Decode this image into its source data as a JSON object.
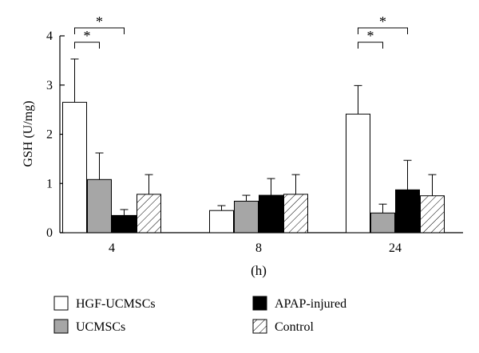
{
  "chart_data": {
    "type": "bar",
    "ylabel": "GSH (U/mg)",
    "xlabel": "(h)",
    "categories": [
      "4",
      "8",
      "24"
    ],
    "ylim": [
      0,
      4
    ],
    "yticks": [
      "0",
      "1",
      "2",
      "3",
      "4"
    ],
    "grid": false,
    "legend_position": "bottom",
    "series": [
      {
        "name": "HGF-UCMSCs",
        "values": [
          2.65,
          0.45,
          2.41
        ],
        "errors": [
          0.88,
          0.1,
          0.58
        ],
        "fill": "white"
      },
      {
        "name": "UCMSCs",
        "values": [
          1.08,
          0.64,
          0.4
        ],
        "errors": [
          0.54,
          0.12,
          0.18
        ],
        "fill": "#a6a6a6"
      },
      {
        "name": "APAP-injured",
        "values": [
          0.35,
          0.76,
          0.87
        ],
        "errors": [
          0.12,
          0.34,
          0.6
        ],
        "fill": "#000000"
      },
      {
        "name": "Control",
        "values": [
          0.78,
          0.78,
          0.75
        ],
        "errors": [
          0.4,
          0.4,
          0.43
        ],
        "fill": "hatch"
      }
    ],
    "significance": [
      {
        "group": "4",
        "from": "HGF-UCMSCs",
        "to": "UCMSCs",
        "label": "*"
      },
      {
        "group": "4",
        "from": "HGF-UCMSCs",
        "to": "APAP-injured",
        "label": "*"
      },
      {
        "group": "24",
        "from": "HGF-UCMSCs",
        "to": "UCMSCs",
        "label": "*"
      },
      {
        "group": "24",
        "from": "HGF-UCMSCs",
        "to": "APAP-injured",
        "label": "*"
      }
    ]
  }
}
